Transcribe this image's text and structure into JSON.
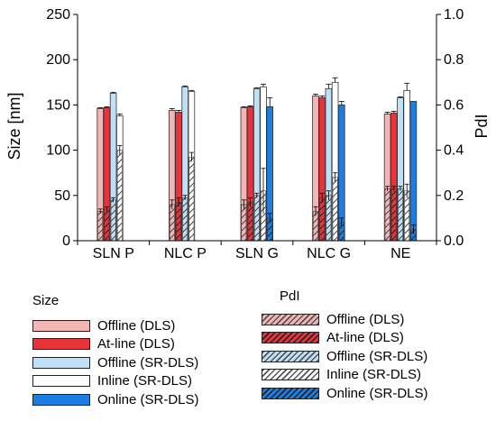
{
  "chart_data": {
    "type": "bar",
    "categories": [
      "SLN P",
      "NLC P",
      "SLN G",
      "NLC G",
      "NE"
    ],
    "ylabel": "Size [nm]",
    "y2label": "PdI",
    "ylim": [
      0,
      250
    ],
    "y2lim": [
      0.0,
      1.0
    ],
    "yticks": [
      "0",
      "50",
      "100",
      "150",
      "200",
      "250"
    ],
    "y2ticks": [
      "0.0",
      "0.2",
      "0.4",
      "0.6",
      "0.8",
      "1.0"
    ],
    "size_series": [
      {
        "name": "Offline (DLS)",
        "values": [
          146,
          144,
          147,
          160,
          140
        ],
        "errors": [
          1,
          2,
          1,
          2,
          2
        ],
        "color": "#f5b5b5"
      },
      {
        "name": "At-line (DLS)",
        "values": [
          147,
          142,
          148,
          158,
          141
        ],
        "errors": [
          1,
          2,
          1,
          2,
          2
        ],
        "color": "#e8333b"
      },
      {
        "name": "Offline (SR-DLS)",
        "values": [
          163,
          170,
          168,
          168,
          158
        ],
        "errors": [
          1,
          1,
          1,
          5,
          1
        ],
        "color": "#bfe0f7"
      },
      {
        "name": "Inline (SR-DLS)",
        "values": [
          138,
          165,
          170,
          175,
          166
        ],
        "errors": [
          2,
          1,
          3,
          5,
          8
        ],
        "color": "#ffffff"
      },
      {
        "name": "Online (SR-DLS)",
        "values": [
          null,
          null,
          148,
          150,
          154
        ],
        "errors": [
          0,
          0,
          10,
          4,
          0
        ],
        "color": "#1c7de3"
      }
    ],
    "pdi_series": [
      {
        "name": "Offline (DLS)",
        "values": [
          0.13,
          0.16,
          0.16,
          0.13,
          0.23
        ],
        "errors": [
          0.01,
          0.02,
          0.02,
          0.02,
          0.01
        ],
        "color": "#f5b5b5"
      },
      {
        "name": "At-line (DLS)",
        "values": [
          0.14,
          0.17,
          0.17,
          0.19,
          0.23
        ],
        "errors": [
          0.01,
          0.02,
          0.02,
          0.02,
          0.01
        ],
        "color": "#e8333b"
      },
      {
        "name": "Offline (SR-DLS)",
        "values": [
          0.18,
          0.19,
          0.2,
          0.2,
          0.23
        ],
        "errors": [
          0.01,
          0.01,
          0.01,
          0.02,
          0.01
        ],
        "color": "#bfe0f7"
      },
      {
        "name": "Inline (SR-DLS)",
        "values": [
          0.4,
          0.37,
          0.22,
          0.28,
          0.22
        ],
        "errors": [
          0.02,
          0.02,
          0.1,
          0.02,
          0.03
        ],
        "color": "#ffffff"
      },
      {
        "name": "Online (SR-DLS)",
        "values": [
          null,
          null,
          0.1,
          0.08,
          0.05
        ],
        "errors": [
          0,
          0,
          0.02,
          0.02,
          0.02
        ],
        "color": "#1c7de3"
      }
    ],
    "legend_title_size": "Size",
    "legend_title_pdi": "PdI",
    "grid": false,
    "legend_position": "bottom"
  }
}
